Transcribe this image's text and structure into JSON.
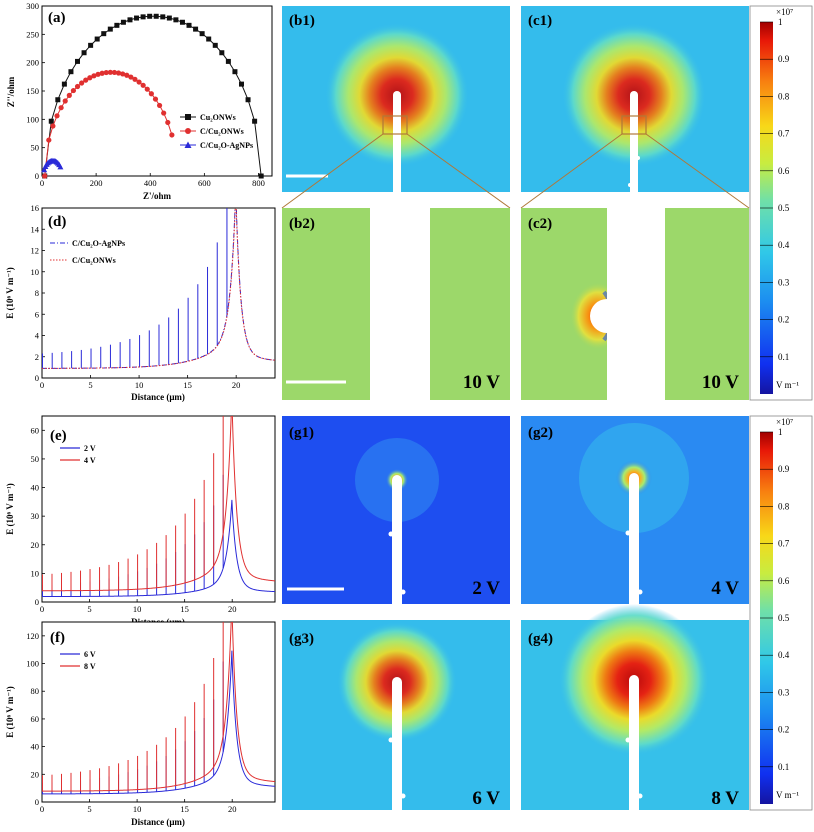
{
  "panel_labels": {
    "a": "(a)",
    "b1": "(b1)",
    "c1": "(c1)",
    "d": "(d)",
    "b2": "(b2)",
    "c2": "(c2)",
    "e": "(e)",
    "f": "(f)",
    "g1": "(g1)",
    "g2": "(g2)",
    "g3": "(g3)",
    "g4": "(g4)"
  },
  "voltage_labels": {
    "b2": "10 V",
    "c2": "10 V",
    "g1": "2 V",
    "g2": "4 V",
    "g3": "6 V",
    "g4": "8 V"
  },
  "colorbar": {
    "multiplier": "×10⁷",
    "ticks": [
      "1",
      "0.9",
      "0.8",
      "0.7",
      "0.6",
      "0.5",
      "0.4",
      "0.3",
      "0.2",
      "0.1"
    ],
    "unit": "V m⁻¹"
  },
  "colors": {
    "black_series": "#111111",
    "red_series": "#e03030",
    "blue_series": "#2a2ad8",
    "field_bg": "#33bbee"
  },
  "chart_data": [
    {
      "id": "a",
      "type": "scatter",
      "xlabel": "Z'/ohm",
      "ylabel": "Z''/ohm",
      "xlim": [
        0,
        850
      ],
      "ylim": [
        0,
        300
      ],
      "xticks": [
        "0",
        "200",
        "400",
        "600",
        "800"
      ],
      "yticks": [
        "0",
        "50",
        "100",
        "150",
        "200",
        "250",
        "300"
      ],
      "series": [
        {
          "name": "Cu₂ONWs",
          "color": "#111111",
          "marker": "square",
          "center": 410,
          "radius": 400,
          "height": 282,
          "x_start": 10,
          "x_end": 810,
          "points": 34
        },
        {
          "name": "C/Cu₂ONWs",
          "color": "#e03030",
          "marker": "circle",
          "center": 255,
          "radius": 245,
          "height": 183,
          "x_start": 10,
          "x_end": 480,
          "points": 32
        },
        {
          "name": "C/Cu₂O-AgNPs",
          "color": "#2a2ad8",
          "marker": "triangle",
          "center": 40,
          "radius": 35,
          "height": 27,
          "x_start": 8,
          "x_end": 68,
          "points": 14
        }
      ]
    },
    {
      "id": "d",
      "type": "line",
      "xlabel": "Distance (μm)",
      "ylabel": "E (10⁶ V m⁻¹)",
      "xlim": [
        0,
        24
      ],
      "ylim": [
        0,
        16
      ],
      "xticks": [
        "0",
        "5",
        "10",
        "15",
        "20"
      ],
      "yticks": [
        "0",
        "2",
        "4",
        "6",
        "8",
        "10",
        "12",
        "14",
        "16"
      ],
      "peak_x": 20,
      "series": [
        {
          "name": "C/Cu₂O-AgNPs",
          "color": "#2a2ad8",
          "dash": "dashdot",
          "base": 0.9,
          "peak": 15.6,
          "spikes": true
        },
        {
          "name": "C/Cu₂ONWs",
          "color": "#e03030",
          "dash": "dot",
          "base": 0.9,
          "peak": 15.2,
          "spikes": false
        }
      ]
    },
    {
      "id": "e",
      "type": "line",
      "xlabel": "Distance (μm)",
      "ylabel": "E (10⁶ V m⁻¹)",
      "xlim": [
        0,
        24.5
      ],
      "ylim": [
        0,
        65
      ],
      "xticks": [
        "0",
        "5",
        "10",
        "15",
        "20"
      ],
      "yticks": [
        "0",
        "10",
        "20",
        "30",
        "40",
        "50",
        "60"
      ],
      "peak_x": 20,
      "series": [
        {
          "name": "2 V",
          "color": "#2a2ad8",
          "base": 1.9,
          "peak": 31,
          "tail": 3.2,
          "spike_scale": 0.7
        },
        {
          "name": "4 V",
          "color": "#e03030",
          "base": 3.9,
          "peak": 63,
          "tail": 6.5,
          "spike_scale": 1.0
        }
      ]
    },
    {
      "id": "f",
      "type": "line",
      "xlabel": "Distance (μm)",
      "ylabel": "E (10⁶ V m⁻¹)",
      "xlim": [
        0,
        24.5
      ],
      "ylim": [
        0,
        130
      ],
      "xticks": [
        "0",
        "5",
        "10",
        "15",
        "20"
      ],
      "yticks": [
        "0",
        "20",
        "40",
        "60",
        "80",
        "100",
        "120"
      ],
      "peak_x": 20,
      "series": [
        {
          "name": "6 V",
          "color": "#2a2ad8",
          "base": 5.8,
          "peak": 95,
          "tail": 10,
          "spike_scale": 0.7
        },
        {
          "name": "8 V",
          "color": "#e03030",
          "base": 7.8,
          "peak": 126,
          "tail": 13,
          "spike_scale": 1.0
        }
      ]
    }
  ]
}
